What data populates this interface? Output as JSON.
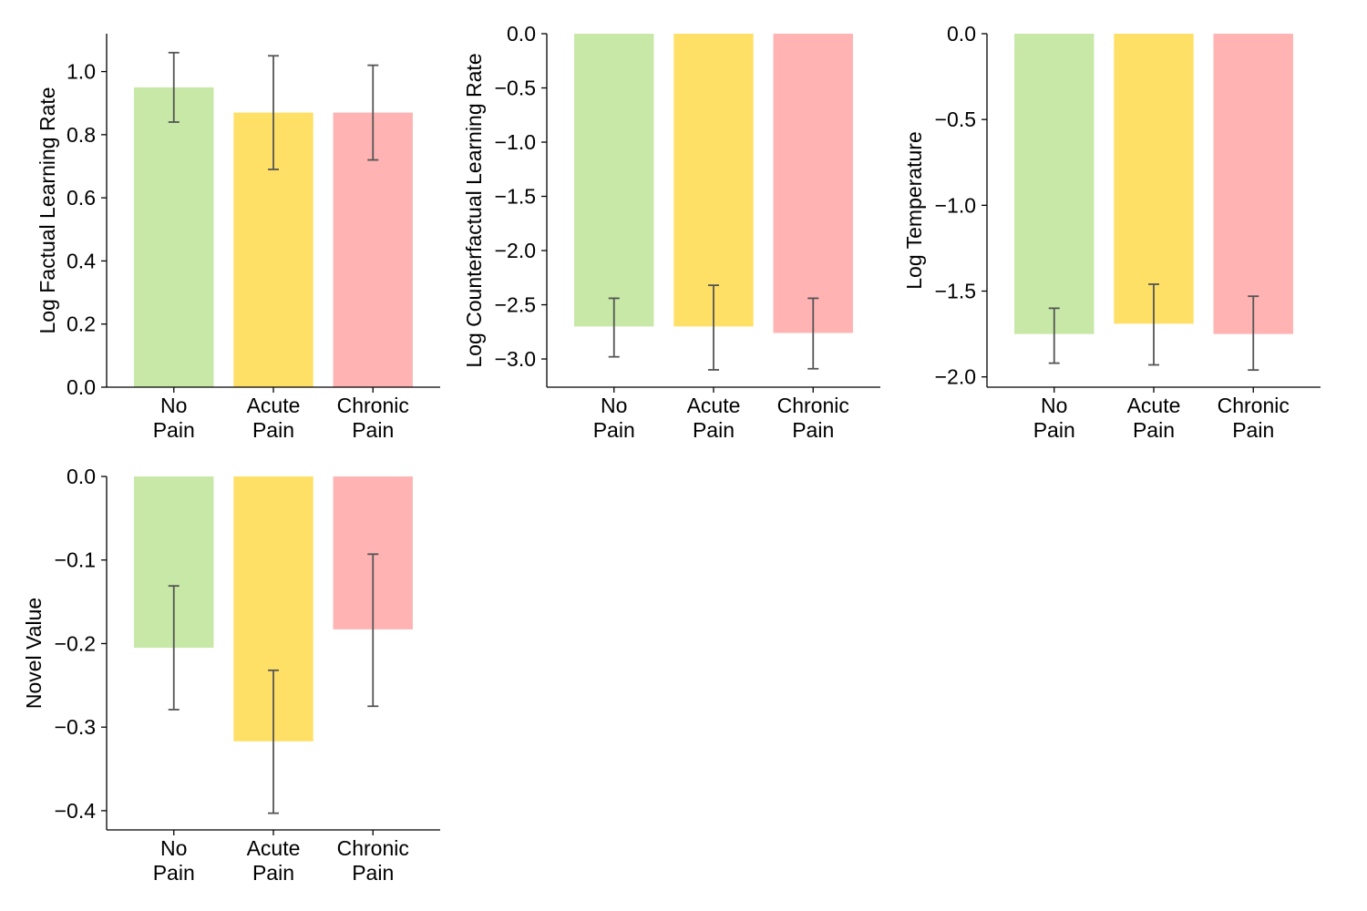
{
  "chart_data": [
    {
      "type": "bar",
      "categories": [
        [
          "No",
          "Pain"
        ],
        [
          "Acute",
          "Pain"
        ],
        [
          "Chronic",
          "Pain"
        ]
      ],
      "values": [
        0.95,
        0.87,
        0.87
      ],
      "error_low": [
        0.84,
        0.69,
        0.72
      ],
      "error_high": [
        1.06,
        1.05,
        1.02
      ],
      "ylabel": "Log Factual Learning Rate",
      "ylim": [
        0.0,
        1.12
      ],
      "yticks": [
        0.0,
        0.2,
        0.4,
        0.6,
        0.8,
        1.0
      ],
      "ytick_labels": [
        "0.0",
        "0.2",
        "0.4",
        "0.6",
        "0.8",
        "1.0"
      ]
    },
    {
      "type": "bar",
      "categories": [
        [
          "No",
          "Pain"
        ],
        [
          "Acute",
          "Pain"
        ],
        [
          "Chronic",
          "Pain"
        ]
      ],
      "values": [
        -2.7,
        -2.7,
        -2.76
      ],
      "error_low": [
        -2.98,
        -3.1,
        -3.09
      ],
      "error_high": [
        -2.44,
        -2.32,
        -2.44
      ],
      "ylabel": "Log Counterfactual Learning Rate",
      "ylim": [
        -3.26,
        0.0
      ],
      "yticks": [
        0.0,
        -0.5,
        -1.0,
        -1.5,
        -2.0,
        -2.5,
        -3.0
      ],
      "ytick_labels": [
        "0.0",
        "−0.5",
        "−1.0",
        "−1.5",
        "−2.0",
        "−2.5",
        "−3.0"
      ]
    },
    {
      "type": "bar",
      "categories": [
        [
          "No",
          "Pain"
        ],
        [
          "Acute",
          "Pain"
        ],
        [
          "Chronic",
          "Pain"
        ]
      ],
      "values": [
        -1.75,
        -1.69,
        -1.75
      ],
      "error_low": [
        -1.92,
        -1.93,
        -1.96
      ],
      "error_high": [
        -1.6,
        -1.46,
        -1.53
      ],
      "ylabel": "Log Temperature",
      "ylim": [
        -2.06,
        0.0
      ],
      "yticks": [
        0.0,
        -0.5,
        -1.0,
        -1.5,
        -2.0
      ],
      "ytick_labels": [
        "0.0",
        "−0.5",
        "−1.0",
        "−1.5",
        "−2.0"
      ]
    },
    {
      "type": "bar",
      "categories": [
        [
          "No",
          "Pain"
        ],
        [
          "Acute",
          "Pain"
        ],
        [
          "Chronic",
          "Pain"
        ]
      ],
      "values": [
        -0.205,
        -0.317,
        -0.183
      ],
      "error_low": [
        -0.279,
        -0.403,
        -0.275
      ],
      "error_high": [
        -0.131,
        -0.232,
        -0.093
      ],
      "ylabel": "Novel Value",
      "ylim": [
        -0.423,
        0.0
      ],
      "yticks": [
        0.0,
        -0.1,
        -0.2,
        -0.3,
        -0.4
      ],
      "ytick_labels": [
        "0.0",
        "−0.1",
        "−0.2",
        "−0.3",
        "−0.4"
      ]
    }
  ],
  "colors": {
    "bars": [
      "#c7e8a6",
      "#ffe066",
      "#ffb3b3"
    ],
    "error_bar": "#555555",
    "axis": "#000000"
  }
}
